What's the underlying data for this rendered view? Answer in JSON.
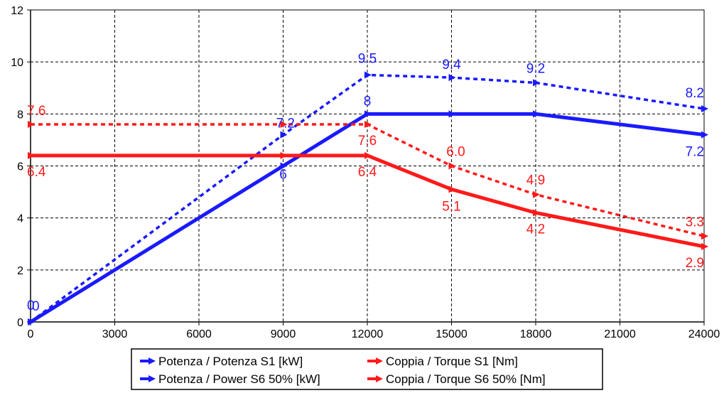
{
  "chart_data": {
    "type": "line",
    "x": [
      0,
      9000,
      12000,
      15000,
      18000,
      24000
    ],
    "xlim": [
      0,
      24000
    ],
    "ylim": [
      0,
      12
    ],
    "xticks": [
      0,
      3000,
      6000,
      9000,
      12000,
      15000,
      18000,
      21000,
      24000
    ],
    "yticks": [
      0,
      2,
      4,
      6,
      8,
      10,
      12
    ],
    "grid": true,
    "legend_position": "bottom",
    "colors": {
      "blue": "#1a1aff",
      "red": "#ff1a1a"
    },
    "series": [
      {
        "name": "Potenza / Potenza S1 [kW]",
        "color": "#1a1aff",
        "style": "solid",
        "values": [
          0,
          6,
          8,
          8,
          8,
          7.2
        ],
        "labels": [
          "0",
          "6",
          "8",
          "",
          "",
          "7.2"
        ]
      },
      {
        "name": "Potenza / Power S6 50% [kW]",
        "color": "#1a1aff",
        "style": "dashed",
        "values": [
          0,
          7.2,
          9.5,
          9.4,
          9.2,
          8.2
        ],
        "labels": [
          "0",
          "7.2",
          "9.5",
          "9.4",
          "9.2",
          "8.2"
        ]
      },
      {
        "name": "Coppia / Torque S1 [Nm]",
        "color": "#ff1a1a",
        "style": "solid",
        "values": [
          6.4,
          6.4,
          6.4,
          5.1,
          4.2,
          2.9
        ],
        "labels": [
          "6.4",
          "",
          "6.4",
          "5.1",
          "4.2",
          "2.9"
        ]
      },
      {
        "name": "Coppia / Torque S6 50% [Nm]",
        "color": "#ff1a1a",
        "style": "dashed",
        "values": [
          7.6,
          7.6,
          7.6,
          6.0,
          4.9,
          3.3
        ],
        "labels": [
          "7.6",
          "",
          "7.6",
          "6.0",
          "4.9",
          "3.3"
        ]
      }
    ]
  }
}
